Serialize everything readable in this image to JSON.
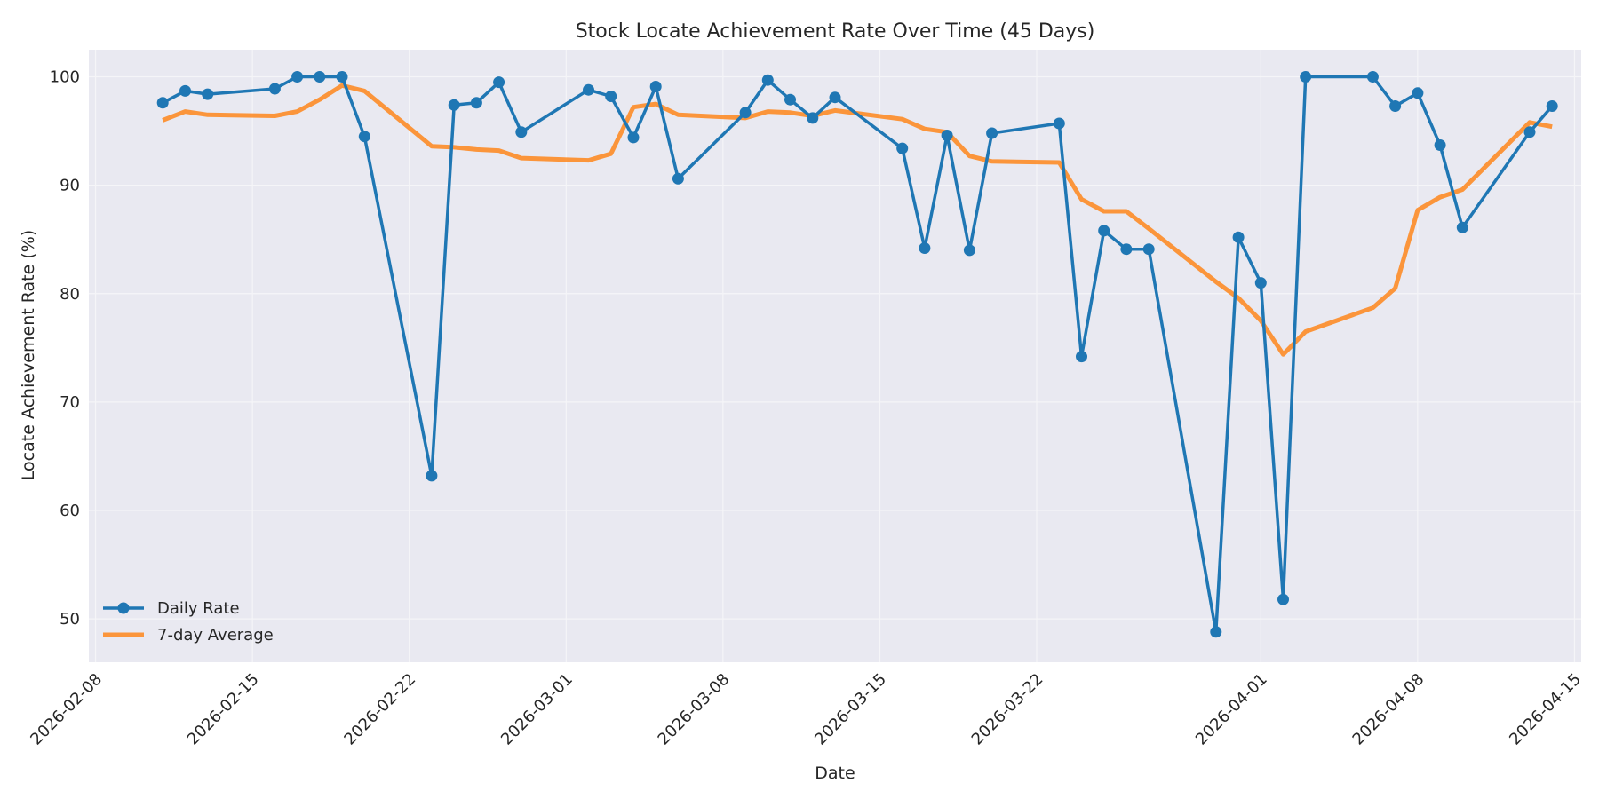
{
  "chart_data": {
    "type": "line",
    "title": "Stock Locate Achievement Rate Over Time (45 Days)",
    "xlabel": "Date",
    "ylabel": "Locate Achievement Rate (%)",
    "xlim": [
      "2026-02-08",
      "2026-04-15"
    ],
    "ylim": [
      46,
      102.5
    ],
    "x_ticks": [
      "2026-02-08",
      "2026-02-15",
      "2026-02-22",
      "2026-03-01",
      "2026-03-08",
      "2026-03-15",
      "2026-03-22",
      "2026-04-01",
      "2026-04-08",
      "2026-04-15"
    ],
    "y_ticks": [
      50,
      60,
      70,
      80,
      90,
      100
    ],
    "grid": true,
    "legend_position": "lower-left",
    "colors": {
      "plot_background": "#e9e9f1",
      "grid": "#f5f5f8",
      "daily": "#1f77b4",
      "average": "#ff7f0e"
    },
    "series": [
      {
        "name": "Daily Rate",
        "marker": "circle",
        "points": [
          [
            "2026-02-11",
            97.6
          ],
          [
            "2026-02-12",
            98.7
          ],
          [
            "2026-02-13",
            98.4
          ],
          [
            "2026-02-16",
            98.9
          ],
          [
            "2026-02-17",
            100.0
          ],
          [
            "2026-02-18",
            100.0
          ],
          [
            "2026-02-19",
            100.0
          ],
          [
            "2026-02-20",
            94.5
          ],
          [
            "2026-02-23",
            63.2
          ],
          [
            "2026-02-24",
            97.4
          ],
          [
            "2026-02-25",
            97.6
          ],
          [
            "2026-02-26",
            99.5
          ],
          [
            "2026-02-27",
            94.9
          ],
          [
            "2026-03-02",
            98.8
          ],
          [
            "2026-03-03",
            98.2
          ],
          [
            "2026-03-04",
            94.4
          ],
          [
            "2026-03-05",
            99.1
          ],
          [
            "2026-03-06",
            90.6
          ],
          [
            "2026-03-09",
            96.7
          ],
          [
            "2026-03-10",
            99.7
          ],
          [
            "2026-03-11",
            97.9
          ],
          [
            "2026-03-12",
            96.2
          ],
          [
            "2026-03-13",
            98.1
          ],
          [
            "2026-03-16",
            93.4
          ],
          [
            "2026-03-17",
            84.2
          ],
          [
            "2026-03-18",
            94.6
          ],
          [
            "2026-03-19",
            84.0
          ],
          [
            "2026-03-20",
            94.8
          ],
          [
            "2026-03-23",
            95.7
          ],
          [
            "2026-03-24",
            74.2
          ],
          [
            "2026-03-25",
            85.8
          ],
          [
            "2026-03-26",
            84.1
          ],
          [
            "2026-03-27",
            84.1
          ],
          [
            "2026-03-30",
            48.8
          ],
          [
            "2026-03-31",
            85.2
          ],
          [
            "2026-04-01",
            81.0
          ],
          [
            "2026-04-02",
            51.8
          ],
          [
            "2026-04-03",
            100.0
          ],
          [
            "2026-04-06",
            100.0
          ],
          [
            "2026-04-07",
            97.3
          ],
          [
            "2026-04-08",
            98.5
          ],
          [
            "2026-04-09",
            93.7
          ],
          [
            "2026-04-10",
            86.1
          ],
          [
            "2026-04-13",
            94.9
          ],
          [
            "2026-04-14",
            97.3
          ]
        ]
      },
      {
        "name": "7-day Average",
        "points": [
          [
            "2026-02-11",
            96.0
          ],
          [
            "2026-02-12",
            96.8
          ],
          [
            "2026-02-13",
            96.5
          ],
          [
            "2026-02-16",
            96.4
          ],
          [
            "2026-02-17",
            96.8
          ],
          [
            "2026-02-18",
            97.9
          ],
          [
            "2026-02-19",
            99.2
          ],
          [
            "2026-02-20",
            98.7
          ],
          [
            "2026-02-23",
            93.6
          ],
          [
            "2026-02-24",
            93.5
          ],
          [
            "2026-02-25",
            93.3
          ],
          [
            "2026-02-26",
            93.2
          ],
          [
            "2026-02-27",
            92.5
          ],
          [
            "2026-03-02",
            92.3
          ],
          [
            "2026-03-03",
            92.9
          ],
          [
            "2026-03-04",
            97.2
          ],
          [
            "2026-03-05",
            97.5
          ],
          [
            "2026-03-06",
            96.5
          ],
          [
            "2026-03-09",
            96.2
          ],
          [
            "2026-03-10",
            96.8
          ],
          [
            "2026-03-11",
            96.7
          ],
          [
            "2026-03-12",
            96.4
          ],
          [
            "2026-03-13",
            96.9
          ],
          [
            "2026-03-16",
            96.1
          ],
          [
            "2026-03-17",
            95.2
          ],
          [
            "2026-03-18",
            94.9
          ],
          [
            "2026-03-19",
            92.7
          ],
          [
            "2026-03-20",
            92.2
          ],
          [
            "2026-03-23",
            92.1
          ],
          [
            "2026-03-24",
            88.7
          ],
          [
            "2026-03-25",
            87.6
          ],
          [
            "2026-03-26",
            87.6
          ],
          [
            "2026-03-27",
            86.0
          ],
          [
            "2026-03-30",
            81.1
          ],
          [
            "2026-03-31",
            79.6
          ],
          [
            "2026-04-01",
            77.5
          ],
          [
            "2026-04-02",
            74.4
          ],
          [
            "2026-04-03",
            76.5
          ],
          [
            "2026-04-06",
            78.7
          ],
          [
            "2026-04-07",
            80.5
          ],
          [
            "2026-04-08",
            87.7
          ],
          [
            "2026-04-09",
            88.9
          ],
          [
            "2026-04-10",
            89.6
          ],
          [
            "2026-04-13",
            95.8
          ],
          [
            "2026-04-14",
            95.4
          ]
        ]
      }
    ]
  }
}
